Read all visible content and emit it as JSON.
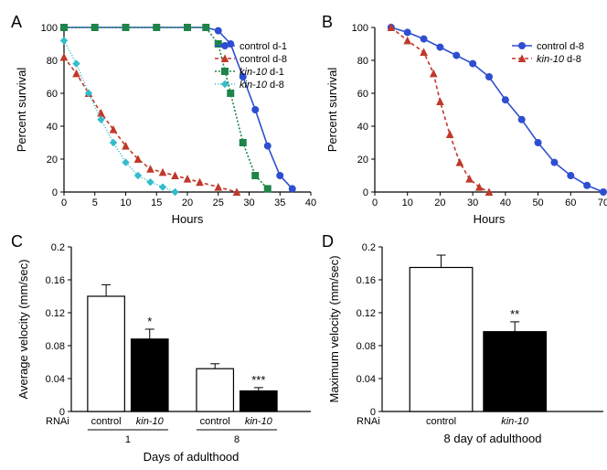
{
  "panelA": {
    "label": "A",
    "type": "line",
    "xlabel": "Hours",
    "ylabel": "Percent survival",
    "xlim": [
      0,
      40
    ],
    "xtick_step": 5,
    "ylim": [
      0,
      100
    ],
    "ytick_step": 20,
    "label_fontsize": 13,
    "tick_fontsize": 11,
    "background_color": "#ffffff",
    "series": [
      {
        "name": "control d-1",
        "color": "#2e4ed1",
        "marker": "circle",
        "dash": "none",
        "x": [
          0,
          5,
          10,
          15,
          20,
          23,
          25,
          27,
          29,
          31,
          33,
          35,
          37
        ],
        "y": [
          100,
          100,
          100,
          100,
          100,
          100,
          98,
          90,
          70,
          50,
          28,
          10,
          2
        ]
      },
      {
        "name": "control d-8",
        "color": "#c0392b",
        "marker": "triangle",
        "dash": "4,3",
        "x": [
          0,
          2,
          4,
          6,
          8,
          10,
          12,
          14,
          16,
          18,
          20,
          22,
          25,
          28
        ],
        "y": [
          82,
          72,
          60,
          48,
          38,
          28,
          20,
          14,
          12,
          10,
          8,
          6,
          3,
          0
        ]
      },
      {
        "name": "kin-10 d-1",
        "italic": "kin-10",
        "suffix": " d-1",
        "color": "#1e8449",
        "marker": "square",
        "dash": "2,2",
        "x": [
          0,
          5,
          10,
          15,
          20,
          23,
          25,
          27,
          29,
          31,
          33
        ],
        "y": [
          100,
          100,
          100,
          100,
          100,
          100,
          90,
          60,
          30,
          10,
          2
        ]
      },
      {
        "name": "kin-10 d-8",
        "italic": "kin-10",
        "suffix": " d-8",
        "color": "#33bccc",
        "marker": "diamond",
        "dash": "1,2",
        "x": [
          0,
          2,
          4,
          6,
          8,
          10,
          12,
          14,
          16,
          18
        ],
        "y": [
          92,
          78,
          60,
          44,
          30,
          18,
          10,
          6,
          3,
          0
        ]
      }
    ]
  },
  "panelB": {
    "label": "B",
    "type": "line",
    "xlabel": "Hours",
    "ylabel": "Percent survival",
    "xlim": [
      0,
      70
    ],
    "xtick_step": 10,
    "ylim": [
      0,
      100
    ],
    "ytick_step": 20,
    "series": [
      {
        "name": "control d-8",
        "color": "#2e4ed1",
        "marker": "circle",
        "dash": "none",
        "x": [
          5,
          10,
          15,
          20,
          25,
          30,
          35,
          40,
          45,
          50,
          55,
          60,
          65,
          70
        ],
        "y": [
          100,
          97,
          93,
          88,
          83,
          78,
          70,
          56,
          44,
          30,
          18,
          10,
          4,
          0
        ]
      },
      {
        "name": "kin-10 d-8",
        "italic": "kin-10",
        "suffix": " d-8",
        "color": "#c0392b",
        "marker": "triangle",
        "dash": "4,3",
        "x": [
          5,
          10,
          15,
          18,
          20,
          23,
          26,
          29,
          32,
          35
        ],
        "y": [
          100,
          92,
          85,
          72,
          55,
          35,
          18,
          8,
          3,
          0
        ]
      }
    ]
  },
  "panelC": {
    "label": "C",
    "type": "bar",
    "ylabel": "Average velocity (mm/sec)",
    "ylim": [
      0,
      0.2
    ],
    "ytick_step": 0.04,
    "rnai_label": "RNAi",
    "xgroup_label": "Days of adulthood",
    "groups": [
      {
        "day": "1",
        "bars": [
          {
            "label": "control",
            "value": 0.14,
            "err": 0.014,
            "fill": "#ffffff",
            "stroke": "#000000",
            "sig": ""
          },
          {
            "label": "kin-10",
            "italic": true,
            "value": 0.088,
            "err": 0.012,
            "fill": "#000000",
            "stroke": "#000000",
            "sig": "*"
          }
        ]
      },
      {
        "day": "8",
        "bars": [
          {
            "label": "control",
            "value": 0.052,
            "err": 0.006,
            "fill": "#ffffff",
            "stroke": "#000000",
            "sig": ""
          },
          {
            "label": "kin-10",
            "italic": true,
            "value": 0.025,
            "err": 0.004,
            "fill": "#000000",
            "stroke": "#000000",
            "sig": "***"
          }
        ]
      }
    ]
  },
  "panelD": {
    "label": "D",
    "type": "bar",
    "ylabel": "Maximum velocity (mm/sec)",
    "ylim": [
      0,
      0.2
    ],
    "ytick_step": 0.04,
    "rnai_label": "RNAi",
    "xgroup_label": "8 day of adulthood",
    "bars": [
      {
        "label": "control",
        "value": 0.175,
        "err": 0.015,
        "fill": "#ffffff",
        "stroke": "#000000",
        "sig": ""
      },
      {
        "label": "kin-10",
        "italic": true,
        "value": 0.097,
        "err": 0.012,
        "fill": "#000000",
        "stroke": "#000000",
        "sig": "**"
      }
    ]
  }
}
